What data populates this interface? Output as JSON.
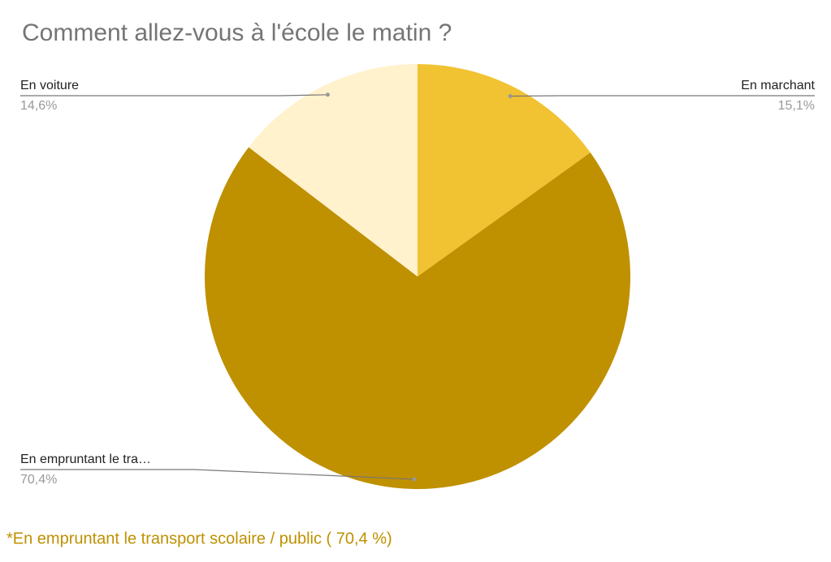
{
  "chart_data": {
    "type": "pie",
    "title": "Comment allez-vous à l'école le matin ?",
    "categories": [
      "En marchant",
      "En empruntant le tra…",
      "En voiture"
    ],
    "values": [
      15.1,
      70.4,
      14.6
    ],
    "value_labels": [
      "15,1%",
      "70,4%",
      "14,6%"
    ],
    "colors": [
      "#f1c232",
      "#bf9000",
      "#fff2cc"
    ],
    "annotation": "*En empruntant le transport scolaire / public ( 70,4 %)"
  }
}
